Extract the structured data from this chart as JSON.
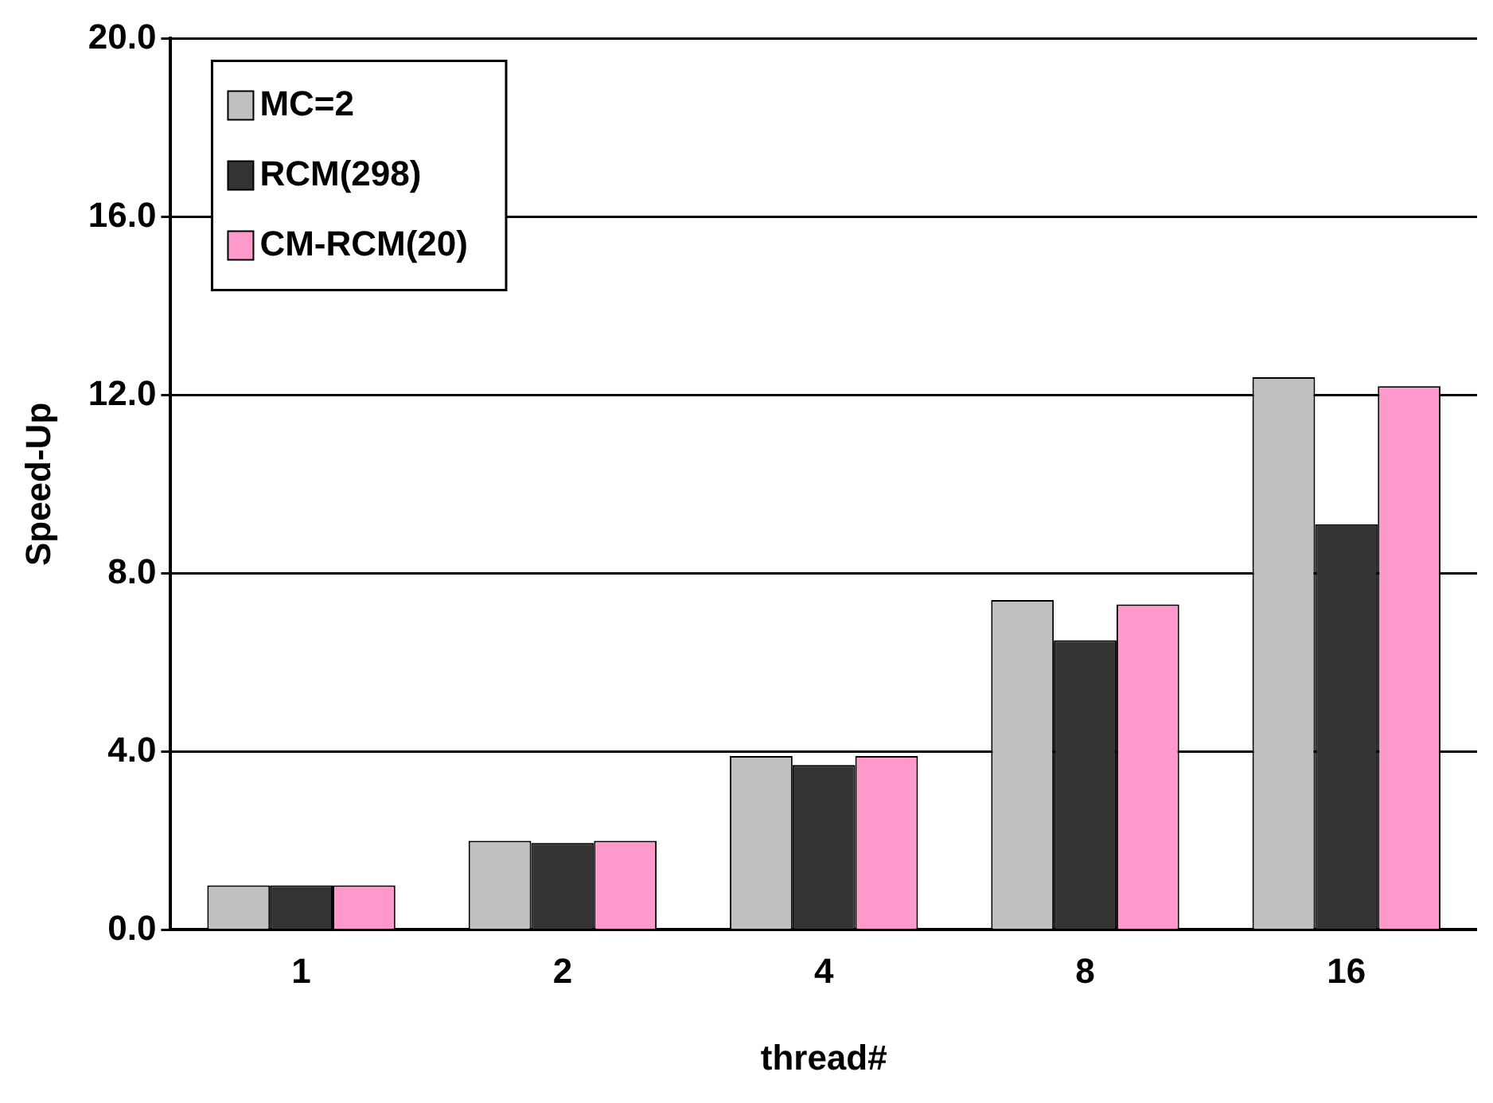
{
  "chart_data": {
    "type": "bar",
    "xlabel": "thread#",
    "ylabel": "Speed-Up",
    "categories": [
      "1",
      "2",
      "4",
      "8",
      "16"
    ],
    "series": [
      {
        "name": "MC=2",
        "color": "#c0c0c0",
        "values": [
          1.0,
          2.0,
          3.9,
          7.4,
          12.4
        ]
      },
      {
        "name": "RCM(298)",
        "color": "#333333",
        "values": [
          1.0,
          1.95,
          3.7,
          6.5,
          9.1
        ]
      },
      {
        "name": "CM-RCM(20)",
        "color": "#ff99cc",
        "values": [
          1.0,
          2.0,
          3.9,
          7.3,
          12.2
        ]
      }
    ],
    "ylim": [
      0,
      20
    ],
    "yticks": [
      {
        "value": 0,
        "label": "0.0"
      },
      {
        "value": 4,
        "label": "4.0"
      },
      {
        "value": 8,
        "label": "8.0"
      },
      {
        "value": 12,
        "label": "12.0"
      },
      {
        "value": 16,
        "label": "16.0"
      },
      {
        "value": 20,
        "label": "20.0"
      }
    ],
    "grid": "y",
    "legend": "top left"
  }
}
